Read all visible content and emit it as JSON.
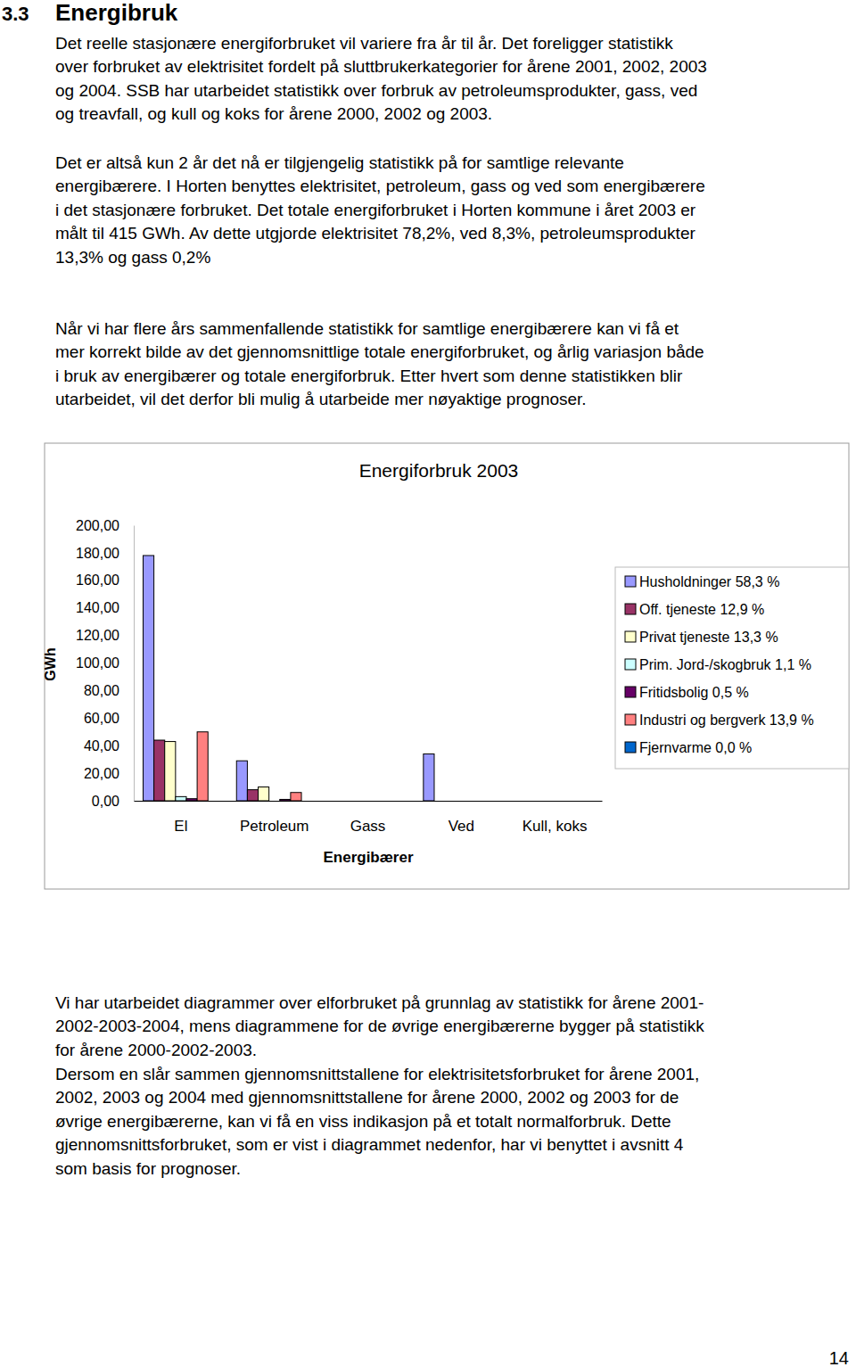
{
  "document": {
    "section_number": "3.3",
    "heading": "Energibruk",
    "paragraphs": [
      [
        "Det reelle stasjonære energiforbruket vil variere fra år til år. Det foreligger statistikk",
        "over forbruket av elektrisitet fordelt på sluttbrukerkategorier for årene 2001, 2002, 2003",
        "og 2004. SSB har utarbeidet statistikk over forbruk av petroleumsprodukter, gass, ved",
        "og treavfall, og kull og koks for årene 2000, 2002 og 2003."
      ],
      [
        "Det er altså kun 2 år det nå er tilgjengelig statistikk på for samtlige relevante",
        "energibærere. I Horten benyttes elektrisitet, petroleum, gass og ved som energibærere",
        "i det stasjonære forbruket. Det totale energiforbruket i Horten kommune i året  2003 er",
        "målt til 415 GWh. Av dette utgjorde elektrisitet 78,2%, ved 8,3%, petroleumsprodukter",
        "13,3% og gass 0,2%"
      ],
      [
        "Når vi har flere års sammenfallende statistikk for samtlige energibærere kan vi få et",
        "mer korrekt bilde av det gjennomsnittlige totale energiforbruket, og årlig variasjon både",
        "i bruk av energibærer og totale energiforbruk. Etter hvert som denne statistikken blir",
        "utarbeidet, vil det derfor bli mulig å utarbeide mer nøyaktige prognoser."
      ],
      [
        "Vi har utarbeidet diagrammer over elforbruket på grunnlag av statistikk for årene 2001-",
        "2002-2003-2004,  mens diagrammene for de øvrige energibærerne bygger på statistikk",
        "for årene 2000-2002-2003."
      ],
      [
        "Dersom en slår sammen gjennomsnittstallene for elektrisitetsforbruket for årene 2001,",
        "2002, 2003 og 2004 med gjennomsnittstallene  for årene 2000,  2002 og 2003 for de",
        "øvrige energibærerne, kan vi få en viss indikasjon på et totalt normalforbruk. Dette",
        "gjennomsnittsforbruket, som er vist i diagrammet nedenfor, har vi benyttet i avsnitt 4",
        "som basis for prognoser."
      ]
    ],
    "page_number": "14"
  },
  "chart_data": {
    "type": "bar",
    "title": "Energiforbruk 2003",
    "x_label": "Energibærer",
    "y_label": "GWh",
    "categories": [
      "El",
      "Petroleum",
      "Gass",
      "Ved",
      "Kull, koks"
    ],
    "series": [
      {
        "name": "Husholdninger 58,3 %",
        "color": "#9999ff",
        "values": [
          178,
          29,
          0,
          34,
          0
        ]
      },
      {
        "name": "Off. tjeneste 12,9 %",
        "color": "#993366",
        "values": [
          44,
          8,
          0,
          0,
          0
        ]
      },
      {
        "name": "Privat tjeneste 13,3 %",
        "color": "#ffffcc",
        "values": [
          43,
          10,
          0,
          0,
          0
        ]
      },
      {
        "name": "Prim. Jord-/skogbruk 1,1 %",
        "color": "#ccffff",
        "values": [
          3,
          0,
          0,
          0,
          0
        ]
      },
      {
        "name": "Fritidsbolig 0,5 %",
        "color": "#660066",
        "values": [
          1.5,
          1,
          0,
          0,
          0
        ]
      },
      {
        "name": "Industri og bergverk 13,9 %",
        "color": "#ff8080",
        "values": [
          50,
          6,
          0,
          0,
          0
        ]
      },
      {
        "name": "Fjernvarme 0,0 %",
        "color": "#0066cc",
        "values": [
          0,
          0,
          0,
          0,
          0
        ]
      }
    ],
    "ylim": [
      0,
      200
    ],
    "yticks": [
      {
        "value": 0,
        "label": "0,00"
      },
      {
        "value": 20,
        "label": "20,00"
      },
      {
        "value": 40,
        "label": "40,00"
      },
      {
        "value": 60,
        "label": "60,00"
      },
      {
        "value": 80,
        "label": "80,00"
      },
      {
        "value": 100,
        "label": "100,00"
      },
      {
        "value": 120,
        "label": "120,00"
      },
      {
        "value": 140,
        "label": "140,00"
      },
      {
        "value": 160,
        "label": "160,00"
      },
      {
        "value": 180,
        "label": "180,00"
      },
      {
        "value": 200,
        "label": "200,00"
      }
    ],
    "grid": false,
    "legend": "right"
  }
}
